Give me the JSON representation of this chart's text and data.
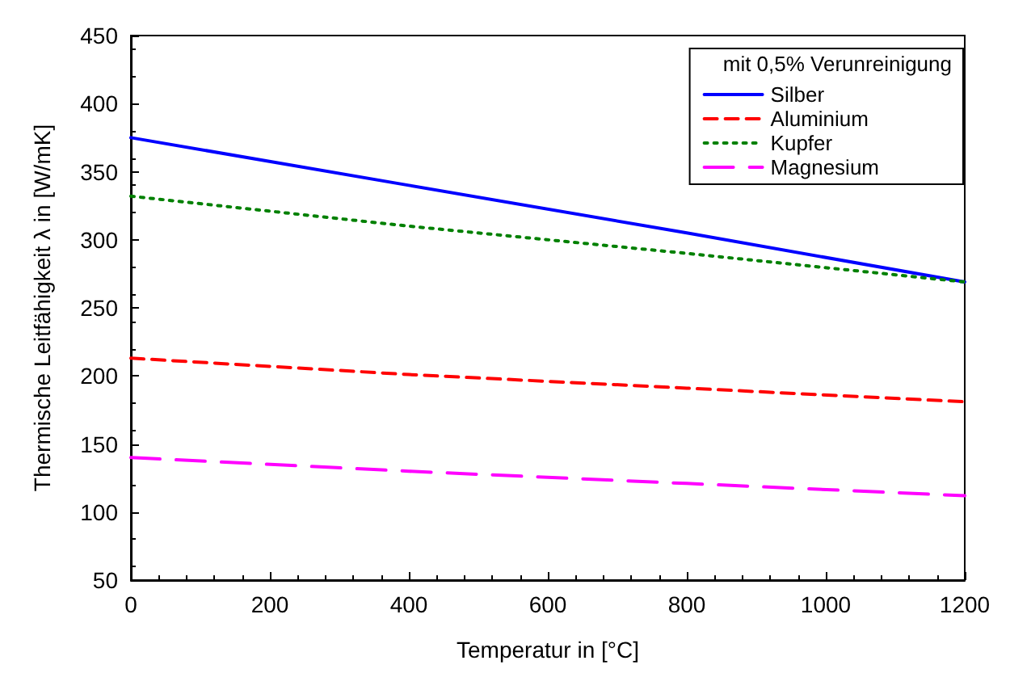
{
  "chart_data": {
    "type": "line",
    "xlabel": "Temperatur in [°C]",
    "ylabel": "Thermische Leitfähigkeit λ in [W/mK]",
    "legend_title": "mit 0,5% Verunreinigung",
    "legend": "top right",
    "grid": false,
    "marker": "none",
    "x": [
      0,
      400,
      800,
      1200
    ],
    "xlim": [
      0,
      1200
    ],
    "xticks": [
      0,
      200,
      400,
      600,
      800,
      1000,
      1200
    ],
    "ylim": [
      50,
      450
    ],
    "yticks": [
      50,
      100,
      150,
      200,
      250,
      300,
      350,
      400,
      450
    ],
    "series": [
      {
        "name": "Silber",
        "color": "#0000ff",
        "line_style": "solid",
        "values": [
          375,
          340,
          305,
          269
        ]
      },
      {
        "name": "Aluminium",
        "color": "#ff0000",
        "line_style": "dashed",
        "values": [
          213,
          201,
          191,
          181
        ]
      },
      {
        "name": "Kupfer",
        "color": "#008000",
        "line_style": "dotted",
        "values": [
          332,
          310,
          290,
          269
        ]
      },
      {
        "name": "Magnesium",
        "color": "#ff00ff",
        "line_style": "dashed",
        "values": [
          140,
          130,
          121,
          112
        ]
      }
    ]
  }
}
